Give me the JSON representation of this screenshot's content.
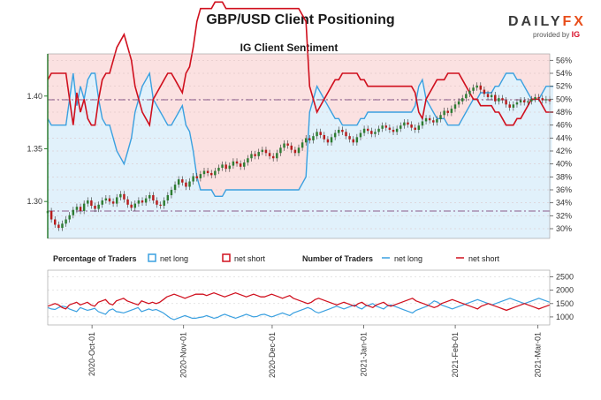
{
  "header": {
    "title": "GBP/USD Client Positioning",
    "logo_text_main": "DAILY",
    "logo_text_fx": "FX",
    "logo_sub": "provided by",
    "logo_ig": "IG"
  },
  "colors": {
    "net_long": "#3aa0e0",
    "net_short": "#d0101e",
    "bg_short": "#fbe1e1",
    "bg_long": "#e1f1fb",
    "candle_up": "#2e7d32",
    "candle_down": "#b71c1c",
    "price_axis": "#2e7d32",
    "level_line": "#8a5a8a"
  },
  "chart_data": [
    {
      "type": "line",
      "title": "IG Client Sentiment",
      "description_series": [
        "GBP/USD price (candles)",
        "net long %",
        "net short %"
      ],
      "y_left_ticks": [
        1.3,
        1.35,
        1.4
      ],
      "y_left_tick_labels": [
        "1.30",
        "1.35",
        "1.40"
      ],
      "y_left_range": [
        1.265,
        1.44
      ],
      "y_right_ticks": [
        30,
        32,
        34,
        36,
        38,
        40,
        42,
        44,
        46,
        48,
        50,
        52,
        54,
        56
      ],
      "y_right_tick_labels": [
        "30%",
        "32%",
        "34%",
        "36%",
        "38%",
        "40%",
        "42%",
        "44%",
        "46%",
        "48%",
        "50%",
        "52%",
        "54%",
        "56%"
      ],
      "y_right_range": [
        28.5,
        57
      ],
      "reference_lines": [
        1.3965,
        1.291
      ],
      "x_range_index": [
        0,
        140
      ],
      "price_close": [
        1.291,
        1.283,
        1.278,
        1.275,
        1.279,
        1.283,
        1.287,
        1.292,
        1.295,
        1.291,
        1.298,
        1.301,
        1.296,
        1.293,
        1.297,
        1.301,
        1.303,
        1.3,
        1.298,
        1.304,
        1.307,
        1.302,
        1.297,
        1.294,
        1.298,
        1.301,
        1.299,
        1.303,
        1.306,
        1.301,
        1.297,
        1.296,
        1.301,
        1.306,
        1.311,
        1.316,
        1.321,
        1.318,
        1.314,
        1.319,
        1.324,
        1.322,
        1.326,
        1.329,
        1.327,
        1.325,
        1.329,
        1.332,
        1.335,
        1.331,
        1.334,
        1.338,
        1.336,
        1.333,
        1.337,
        1.341,
        1.345,
        1.343,
        1.347,
        1.349,
        1.346,
        1.343,
        1.341,
        1.346,
        1.351,
        1.355,
        1.353,
        1.349,
        1.346,
        1.351,
        1.356,
        1.36,
        1.358,
        1.362,
        1.366,
        1.363,
        1.359,
        1.356,
        1.361,
        1.365,
        1.368,
        1.366,
        1.362,
        1.359,
        1.356,
        1.361,
        1.365,
        1.369,
        1.367,
        1.364,
        1.366,
        1.369,
        1.372,
        1.37,
        1.368,
        1.366,
        1.369,
        1.372,
        1.375,
        1.373,
        1.37,
        1.368,
        1.372,
        1.376,
        1.379,
        1.377,
        1.375,
        1.378,
        1.382,
        1.386,
        1.384,
        1.388,
        1.392,
        1.395,
        1.398,
        1.402,
        1.405,
        1.408,
        1.41,
        1.406,
        1.402,
        1.399,
        1.401,
        1.395,
        1.398,
        1.396,
        1.392,
        1.389,
        1.392,
        1.394,
        1.396,
        1.394,
        1.395,
        1.397,
        1.399,
        1.398,
        1.396,
        1.397,
        1.395
      ],
      "net_long_pct": [
        47,
        46,
        46,
        46,
        46,
        46,
        50,
        54,
        49,
        52,
        50,
        53,
        54,
        54,
        50,
        47,
        46,
        46,
        44,
        42,
        41,
        40,
        42,
        44,
        48,
        50,
        52,
        53,
        54,
        50,
        49,
        48,
        47,
        46,
        46,
        47,
        48,
        49,
        46,
        45,
        42,
        38,
        36,
        36,
        36,
        36,
        35,
        35,
        35,
        36,
        36,
        36,
        36,
        36,
        36,
        36,
        36,
        36,
        36,
        36,
        36,
        36,
        36,
        36,
        36,
        36,
        36,
        36,
        36,
        36,
        37,
        38,
        48,
        50,
        52,
        51,
        50,
        49,
        48,
        47,
        47,
        46,
        46,
        46,
        46,
        46,
        47,
        47,
        48,
        48,
        48,
        48,
        48,
        48,
        48,
        48,
        48,
        48,
        48,
        48,
        48,
        49,
        52,
        53,
        50,
        49,
        48,
        47,
        47,
        47,
        46,
        46,
        46,
        46,
        47,
        48,
        49,
        50,
        50,
        51,
        51,
        51,
        51,
        52,
        52,
        53,
        54,
        54,
        54,
        53,
        53,
        52,
        51,
        50,
        50,
        50,
        51,
        52,
        52,
        52
      ],
      "net_short_pct": [
        53,
        54,
        54,
        54,
        54,
        54,
        50,
        46,
        51,
        48,
        50,
        47,
        46,
        46,
        50,
        53,
        54,
        54,
        56,
        58,
        59,
        60,
        58,
        56,
        52,
        50,
        48,
        47,
        46,
        50,
        51,
        52,
        53,
        54,
        54,
        53,
        52,
        51,
        54,
        55,
        58,
        62,
        64,
        64,
        64,
        64,
        65,
        65,
        65,
        64,
        64,
        64,
        64,
        64,
        64,
        64,
        64,
        64,
        64,
        64,
        64,
        64,
        64,
        64,
        64,
        64,
        64,
        64,
        64,
        64,
        63,
        62,
        52,
        50,
        48,
        49,
        50,
        51,
        52,
        53,
        53,
        54,
        54,
        54,
        54,
        54,
        53,
        53,
        52,
        52,
        52,
        52,
        52,
        52,
        52,
        52,
        52,
        52,
        52,
        52,
        52,
        51,
        48,
        47,
        50,
        51,
        52,
        53,
        53,
        53,
        54,
        54,
        54,
        54,
        53,
        52,
        51,
        50,
        50,
        49,
        49,
        49,
        49,
        48,
        48,
        47,
        46,
        46,
        46,
        47,
        47,
        48,
        49,
        50,
        50,
        50,
        49,
        48,
        48,
        48
      ]
    },
    {
      "type": "line",
      "title": "",
      "y_right_ticks": [
        1000,
        1500,
        2000,
        2500
      ],
      "y_right_tick_labels": [
        "1000",
        "1500",
        "2000",
        "2500"
      ],
      "y_range": [
        700,
        2750
      ],
      "x_tick_labels": [
        "2020-Oct-01",
        "2020-Nov-01",
        "2020-Dec-01",
        "2021-Jan-01",
        "2021-Feb-01",
        "2021-Mar-01"
      ],
      "x_tick_index": [
        15,
        46,
        76,
        107,
        138,
        166
      ],
      "net_long": [
        1350,
        1300,
        1280,
        1350,
        1400,
        1380,
        1300,
        1250,
        1200,
        1350,
        1300,
        1250,
        1280,
        1320,
        1200,
        1150,
        1100,
        1250,
        1300,
        1200,
        1180,
        1150,
        1200,
        1250,
        1300,
        1350,
        1200,
        1250,
        1300,
        1250,
        1280,
        1220,
        1150,
        1050,
        950,
        900,
        950,
        1000,
        1050,
        1000,
        950,
        950,
        980,
        1000,
        1050,
        1000,
        950,
        980,
        1050,
        1100,
        1050,
        1000,
        950,
        1000,
        1050,
        1100,
        1050,
        1000,
        1020,
        1080,
        1100,
        1050,
        1000,
        1050,
        1100,
        1150,
        1100,
        1050,
        1150,
        1200,
        1250,
        1300,
        1350,
        1300,
        1200,
        1150,
        1200,
        1250,
        1300,
        1350,
        1400,
        1350,
        1300,
        1350,
        1400,
        1450,
        1350,
        1300,
        1400,
        1450,
        1500,
        1400,
        1350,
        1300,
        1400,
        1450,
        1400,
        1350,
        1300,
        1250,
        1200,
        1150,
        1250,
        1300,
        1350,
        1400,
        1500,
        1600,
        1550,
        1450,
        1400,
        1350,
        1300,
        1350,
        1400,
        1450,
        1500,
        1550,
        1600,
        1650,
        1600,
        1550,
        1500,
        1450,
        1500,
        1550,
        1600,
        1650,
        1700,
        1650,
        1600,
        1550,
        1500,
        1550,
        1600,
        1650,
        1700,
        1650,
        1600,
        1550
      ],
      "net_short": [
        1400,
        1450,
        1500,
        1450,
        1350,
        1300,
        1450,
        1500,
        1550,
        1450,
        1500,
        1550,
        1450,
        1400,
        1550,
        1600,
        1650,
        1500,
        1450,
        1600,
        1650,
        1700,
        1600,
        1550,
        1500,
        1450,
        1600,
        1550,
        1500,
        1550,
        1500,
        1550,
        1650,
        1750,
        1800,
        1850,
        1800,
        1750,
        1700,
        1750,
        1800,
        1850,
        1850,
        1850,
        1800,
        1850,
        1900,
        1850,
        1800,
        1750,
        1800,
        1850,
        1900,
        1850,
        1800,
        1750,
        1800,
        1850,
        1800,
        1750,
        1750,
        1800,
        1850,
        1800,
        1750,
        1700,
        1750,
        1800,
        1700,
        1650,
        1600,
        1550,
        1500,
        1550,
        1650,
        1700,
        1650,
        1600,
        1550,
        1500,
        1450,
        1500,
        1550,
        1500,
        1450,
        1400,
        1500,
        1550,
        1450,
        1400,
        1350,
        1450,
        1500,
        1550,
        1450,
        1400,
        1450,
        1500,
        1550,
        1600,
        1650,
        1700,
        1600,
        1550,
        1500,
        1450,
        1400,
        1350,
        1400,
        1500,
        1550,
        1600,
        1650,
        1600,
        1550,
        1500,
        1450,
        1400,
        1350,
        1300,
        1400,
        1450,
        1500,
        1450,
        1400,
        1350,
        1300,
        1250,
        1300,
        1350,
        1400,
        1450,
        1500,
        1450,
        1400,
        1350,
        1300,
        1350,
        1400,
        1450
      ]
    }
  ],
  "legend": {
    "pct_heading": "Percentage of Traders",
    "net_long_box": "net long",
    "net_short_box": "net short",
    "num_heading": "Number of Traders",
    "net_long_line": "net long",
    "net_short_line": "net short"
  }
}
